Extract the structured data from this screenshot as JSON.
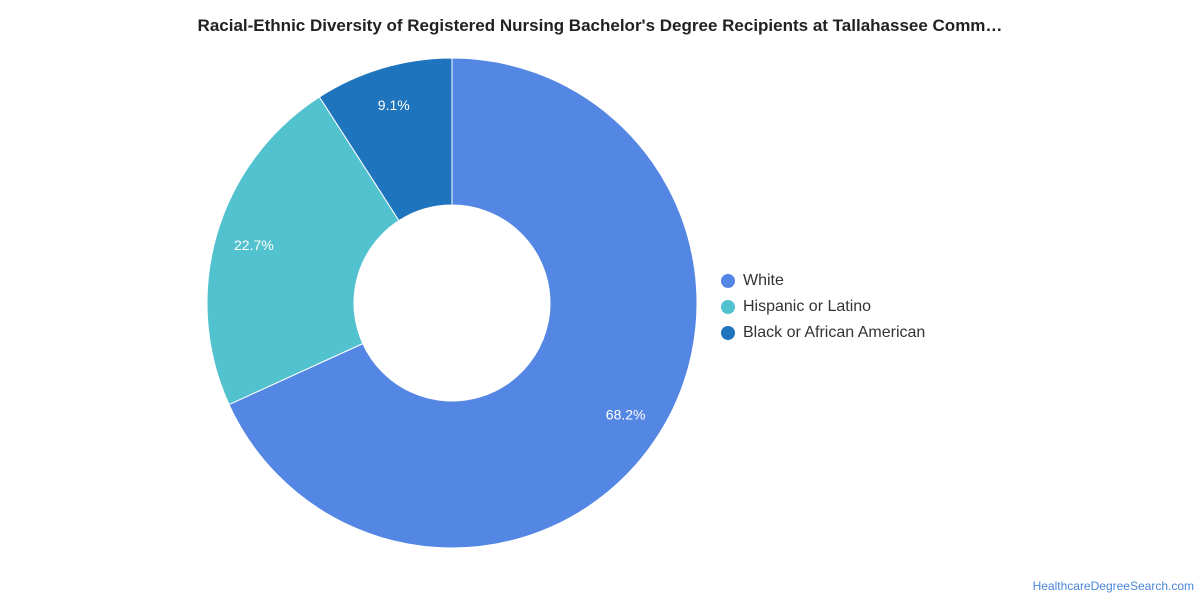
{
  "chart_data": {
    "type": "pie",
    "title": "Racial-Ethnic Diversity of Registered Nursing Bachelor's Degree Recipients at Tallahassee Comm…",
    "categories": [
      "White",
      "Hispanic or Latino",
      "Black or African American"
    ],
    "values": [
      68.2,
      22.7,
      9.1
    ],
    "labels": [
      "68.2%",
      "22.7%",
      "9.1%"
    ],
    "colors": [
      "#5486e3",
      "#52c2cf",
      "#1f74be"
    ],
    "donut": true,
    "legend_position": "right"
  },
  "footer": {
    "source": "HealthcareDegreeSearch.com"
  }
}
